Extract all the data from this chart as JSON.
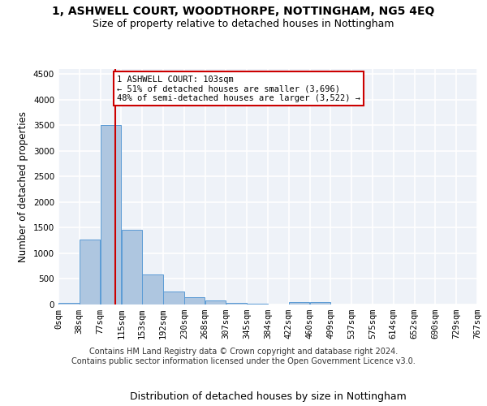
{
  "title_line1": "1, ASHWELL COURT, WOODTHORPE, NOTTINGHAM, NG5 4EQ",
  "title_line2": "Size of property relative to detached houses in Nottingham",
  "xlabel": "Distribution of detached houses by size in Nottingham",
  "ylabel": "Number of detached properties",
  "bin_labels": [
    "0sqm",
    "38sqm",
    "77sqm",
    "115sqm",
    "153sqm",
    "192sqm",
    "230sqm",
    "268sqm",
    "307sqm",
    "345sqm",
    "384sqm",
    "422sqm",
    "460sqm",
    "499sqm",
    "537sqm",
    "575sqm",
    "614sqm",
    "652sqm",
    "690sqm",
    "729sqm",
    "767sqm"
  ],
  "bar_heights": [
    30,
    1270,
    3500,
    1460,
    580,
    250,
    135,
    80,
    30,
    15,
    5,
    40,
    40,
    0,
    0,
    0,
    0,
    0,
    0,
    0
  ],
  "bar_color": "#aec6e0",
  "bar_edge_color": "#5b9bd5",
  "property_line_x": 103,
  "bin_width": 38,
  "ylim": [
    0,
    4600
  ],
  "yticks": [
    0,
    500,
    1000,
    1500,
    2000,
    2500,
    3000,
    3500,
    4000,
    4500
  ],
  "annotation_title": "1 ASHWELL COURT: 103sqm",
  "annotation_line1": "← 51% of detached houses are smaller (3,696)",
  "annotation_line2": "48% of semi-detached houses are larger (3,522) →",
  "vline_color": "#cc0000",
  "annotation_box_color": "#ffffff",
  "annotation_box_edge": "#cc0000",
  "footer1": "Contains HM Land Registry data © Crown copyright and database right 2024.",
  "footer2": "Contains public sector information licensed under the Open Government Licence v3.0.",
  "background_color": "#eef2f8",
  "grid_color": "#ffffff",
  "title_fontsize": 10,
  "subtitle_fontsize": 9,
  "axis_label_fontsize": 8.5,
  "tick_fontsize": 7.5,
  "footer_fontsize": 7
}
